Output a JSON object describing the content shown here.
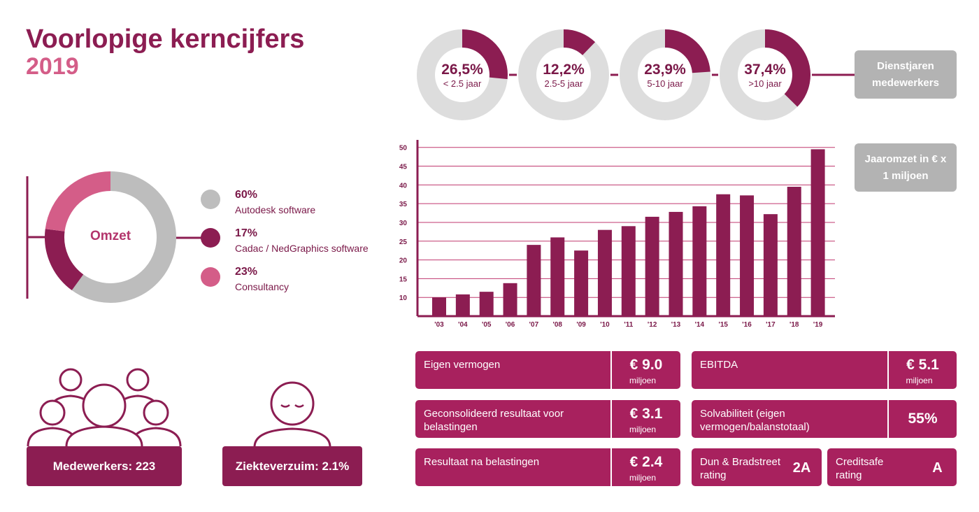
{
  "title": "Voorlopige kerncijfers",
  "year": "2019",
  "dienstjaren": {
    "label": "Dienstjaren medewerkers",
    "items": [
      {
        "pct": "26,5%",
        "sub": "< 2.5 jaar",
        "value": 26.5
      },
      {
        "pct": "12,2%",
        "sub": "2.5-5 jaar",
        "value": 12.2
      },
      {
        "pct": "23,9%",
        "sub": "5-10 jaar",
        "value": 23.9
      },
      {
        "pct": "37,4%",
        "sub": ">10 jaar",
        "value": 37.4
      }
    ]
  },
  "omzet": {
    "label": "Omzet",
    "items": [
      {
        "pct": "60%",
        "label": "Autodesk software",
        "value": 60,
        "color": "#bdbdbd"
      },
      {
        "pct": "17%",
        "label": "Cadac / NedGraphics software",
        "value": 17,
        "color": "#8c1d52"
      },
      {
        "pct": "23%",
        "label": "Consultancy",
        "value": 23,
        "color": "#d45d88"
      }
    ]
  },
  "chart_data": {
    "type": "bar",
    "title": "Jaaromzet in € x 1 miljoen",
    "categories": [
      "'03",
      "'04",
      "'05",
      "'06",
      "'07",
      "'08",
      "'09",
      "'10",
      "'11",
      "'12",
      "'13",
      "'14",
      "'15",
      "'16",
      "'17",
      "'18",
      "'19"
    ],
    "values": [
      10,
      10.8,
      11.5,
      13.8,
      24,
      26,
      22.5,
      28,
      29,
      31.5,
      32.8,
      34.3,
      37.5,
      37.2,
      32.2,
      39.5,
      49.5
    ],
    "yticks": [
      10,
      15,
      20,
      25,
      30,
      35,
      40,
      45,
      50
    ],
    "ylim": [
      5,
      52
    ],
    "grid": true,
    "bar_color": "#8c1d52"
  },
  "kpis": {
    "eigen_vermogen": {
      "label": "Eigen vermogen",
      "value": "€ 9.0",
      "unit": "miljoen"
    },
    "ebitda": {
      "label": "EBITDA",
      "value": "€ 5.1",
      "unit": "miljoen"
    },
    "resultaat_voor": {
      "label": "Geconsolideerd resultaat voor belastingen",
      "value": "€ 3.1",
      "unit": "miljoen"
    },
    "solvabiliteit": {
      "label": "Solvabiliteit (eigen vermogen/balanstotaal)",
      "value": "55%"
    },
    "resultaat_na": {
      "label": "Resultaat na belastingen",
      "value": "€ 2.4",
      "unit": "miljoen"
    },
    "dun_bradstreet": {
      "label": "Dun & Bradstreet rating",
      "value": "2A"
    },
    "creditsafe": {
      "label": "Creditsafe rating",
      "value": "A"
    }
  },
  "medewerkers": {
    "label": "Medewerkers: 223"
  },
  "ziekteverzuim": {
    "label": "Ziekteverzuim: 2.1%"
  }
}
